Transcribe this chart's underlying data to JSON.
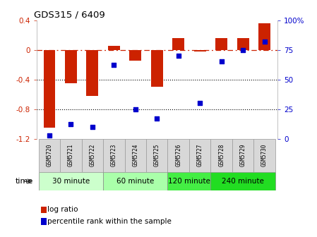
{
  "title": "GDS315 / 6409",
  "samples": [
    "GSM5720",
    "GSM5721",
    "GSM5722",
    "GSM5723",
    "GSM5724",
    "GSM5725",
    "GSM5726",
    "GSM5727",
    "GSM5728",
    "GSM5729",
    "GSM5730"
  ],
  "log_ratio": [
    -1.05,
    -0.45,
    -0.62,
    0.05,
    -0.15,
    -0.5,
    0.16,
    -0.02,
    0.16,
    0.16,
    0.36
  ],
  "percentile": [
    3,
    12,
    10,
    62,
    25,
    17,
    70,
    30,
    65,
    75,
    82
  ],
  "bar_color": "#cc2200",
  "dot_color": "#0000cc",
  "ylim_left": [
    -1.2,
    0.4
  ],
  "ylim_right": [
    0,
    100
  ],
  "left_yticks": [
    -1.2,
    -0.8,
    -0.4,
    0.0,
    0.4
  ],
  "left_yticklabels": [
    "-1.2",
    "-0.8",
    "-0.4",
    "0",
    "0.4"
  ],
  "right_yticks": [
    0,
    25,
    50,
    75,
    100
  ],
  "right_yticklabels": [
    "0",
    "25",
    "50",
    "75",
    "100%"
  ],
  "dotted_lines": [
    -0.4,
    -0.8
  ],
  "time_groups": [
    {
      "label": "30 minute",
      "start": 0,
      "end": 3,
      "color": "#ccffcc"
    },
    {
      "label": "60 minute",
      "start": 3,
      "end": 6,
      "color": "#aaffaa"
    },
    {
      "label": "120 minute",
      "start": 6,
      "end": 8,
      "color": "#44ee44"
    },
    {
      "label": "240 minute",
      "start": 8,
      "end": 11,
      "color": "#22dd22"
    }
  ],
  "sample_box_color": "#d8d8d8",
  "sample_box_edge": "#999999",
  "xlabel_time": "time",
  "legend_log": "log ratio",
  "legend_pct": "percentile rank within the sample"
}
